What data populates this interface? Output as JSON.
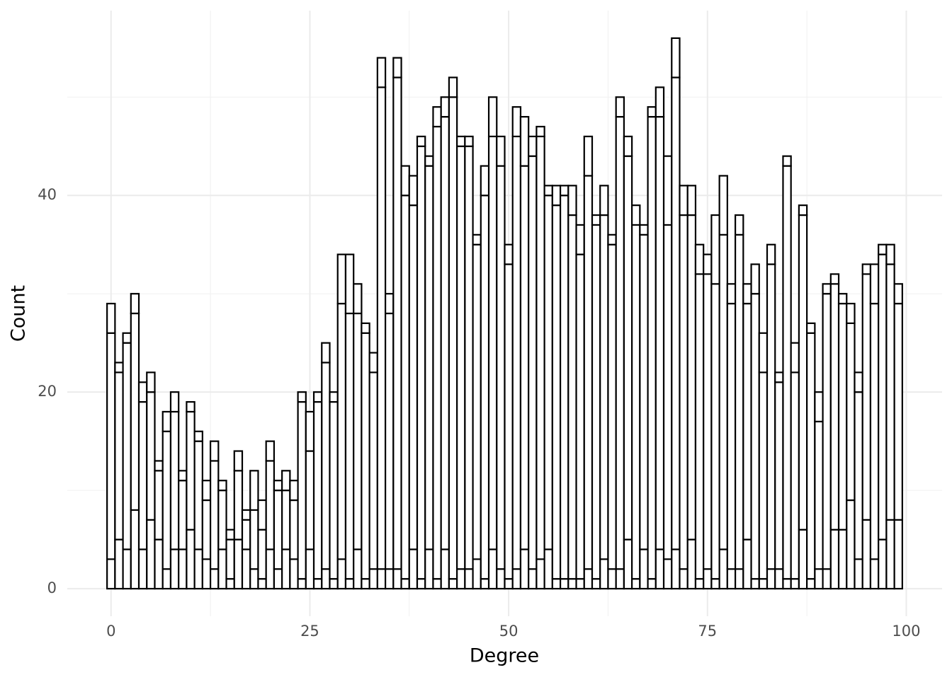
{
  "chart_data": {
    "type": "histogram",
    "xlabel": "Degree",
    "ylabel": "Count",
    "bins": [
      -0.5,
      0.5,
      1.5,
      2.5,
      3.5,
      4.5,
      5.5,
      6.5,
      7.5,
      8.5,
      9.5,
      10.5,
      11.5,
      12.5,
      13.5,
      14.5,
      15.5,
      16.5,
      17.5,
      18.5,
      19.5,
      20.5,
      21.5,
      22.5,
      23.5,
      24.5,
      25.5,
      26.5,
      27.5,
      28.5,
      29.5,
      30.5,
      31.5,
      32.5,
      33.5,
      34.5,
      35.5,
      36.5,
      37.5,
      38.5,
      39.5,
      40.5,
      41.5,
      42.5,
      43.5,
      44.5,
      45.5,
      46.5,
      47.5,
      48.5,
      49.5,
      50.5,
      51.5,
      52.5,
      53.5,
      54.5,
      55.5,
      56.5,
      57.5,
      58.5,
      59.5,
      60.5,
      61.5,
      62.5,
      63.5,
      64.5,
      65.5,
      66.5,
      67.5,
      68.5,
      69.5,
      70.5,
      71.5,
      72.5,
      73.5,
      74.5,
      75.5,
      76.5,
      77.5,
      78.5,
      79.5,
      80.5,
      81.5,
      82.5,
      83.5,
      84.5,
      85.5,
      86.5,
      87.5,
      88.5,
      89.5,
      90.5,
      91.5,
      92.5,
      93.5,
      94.5,
      95.5,
      96.5,
      97.5,
      98.5,
      99.5
    ],
    "stacked": true,
    "fill": "#ffffff",
    "edgecolor": "#000000",
    "series": [
      {
        "values": [
          3,
          5,
          4,
          8,
          4,
          7,
          5,
          2,
          4,
          4,
          6,
          4,
          3,
          2,
          4,
          1,
          5,
          4,
          2,
          1,
          4,
          2,
          4,
          3,
          1,
          4,
          1,
          2,
          1,
          3,
          1,
          4,
          1,
          2,
          2,
          2,
          2,
          1,
          4,
          1,
          4,
          1,
          4,
          1,
          2,
          2,
          3,
          1,
          4,
          2,
          1,
          2,
          4,
          2,
          3,
          4,
          1,
          1,
          1,
          1,
          2,
          1,
          3,
          2,
          2,
          5,
          1,
          4,
          1,
          4,
          3,
          4,
          2,
          5,
          1,
          2,
          1,
          4,
          2,
          2,
          5,
          1,
          1,
          2,
          2,
          1,
          1,
          6,
          1,
          2,
          2,
          6,
          6,
          9,
          3,
          7,
          3,
          5,
          7,
          7
        ]
      },
      {
        "values": [
          23,
          17,
          21,
          20,
          15,
          13,
          7,
          14,
          14,
          7,
          12,
          11,
          6,
          11,
          6,
          4,
          7,
          3,
          6,
          5,
          9,
          8,
          6,
          6,
          18,
          10,
          18,
          21,
          18,
          26,
          27,
          24,
          25,
          20,
          49,
          26,
          50,
          39,
          35,
          44,
          39,
          46,
          44,
          49,
          43,
          43,
          32,
          39,
          42,
          41,
          32,
          44,
          39,
          42,
          43,
          36,
          38,
          39,
          37,
          33,
          40,
          36,
          35,
          33,
          46,
          39,
          36,
          32,
          47,
          44,
          34,
          48,
          36,
          33,
          31,
          30,
          30,
          32,
          27,
          34,
          24,
          29,
          21,
          31,
          19,
          42,
          21,
          32,
          25,
          15,
          28,
          25,
          23,
          18,
          17,
          25,
          26,
          29,
          26,
          22
        ]
      },
      {
        "values": [
          3,
          1,
          1,
          2,
          2,
          2,
          1,
          2,
          2,
          1,
          1,
          1,
          2,
          2,
          1,
          1,
          2,
          1,
          4,
          3,
          2,
          1,
          2,
          2,
          1,
          4,
          1,
          2,
          1,
          5,
          6,
          3,
          1,
          2,
          3,
          2,
          2,
          3,
          3,
          1,
          1,
          2,
          2,
          2,
          1,
          1,
          1,
          3,
          4,
          3,
          2,
          3,
          5,
          2,
          1,
          1,
          2,
          1,
          3,
          3,
          4,
          1,
          3,
          1,
          2,
          2,
          2,
          1,
          1,
          3,
          7,
          4,
          3,
          3,
          3,
          2,
          7,
          6,
          2,
          2,
          2,
          3,
          4,
          2,
          1,
          1,
          3,
          1,
          1,
          3,
          1,
          1,
          1,
          2,
          2,
          1,
          4,
          1,
          2,
          2
        ]
      }
    ],
    "xlim": [
      -5.5,
      104.5
    ],
    "ylim": [
      -2.8,
      58.8
    ],
    "xticks": [
      0,
      25,
      50,
      75,
      100
    ],
    "yticks": [
      0,
      20,
      40
    ],
    "minor_xticks": [
      12.5,
      37.5,
      62.5,
      87.5
    ],
    "minor_yticks": [
      10,
      30,
      50
    ],
    "grid": true
  }
}
